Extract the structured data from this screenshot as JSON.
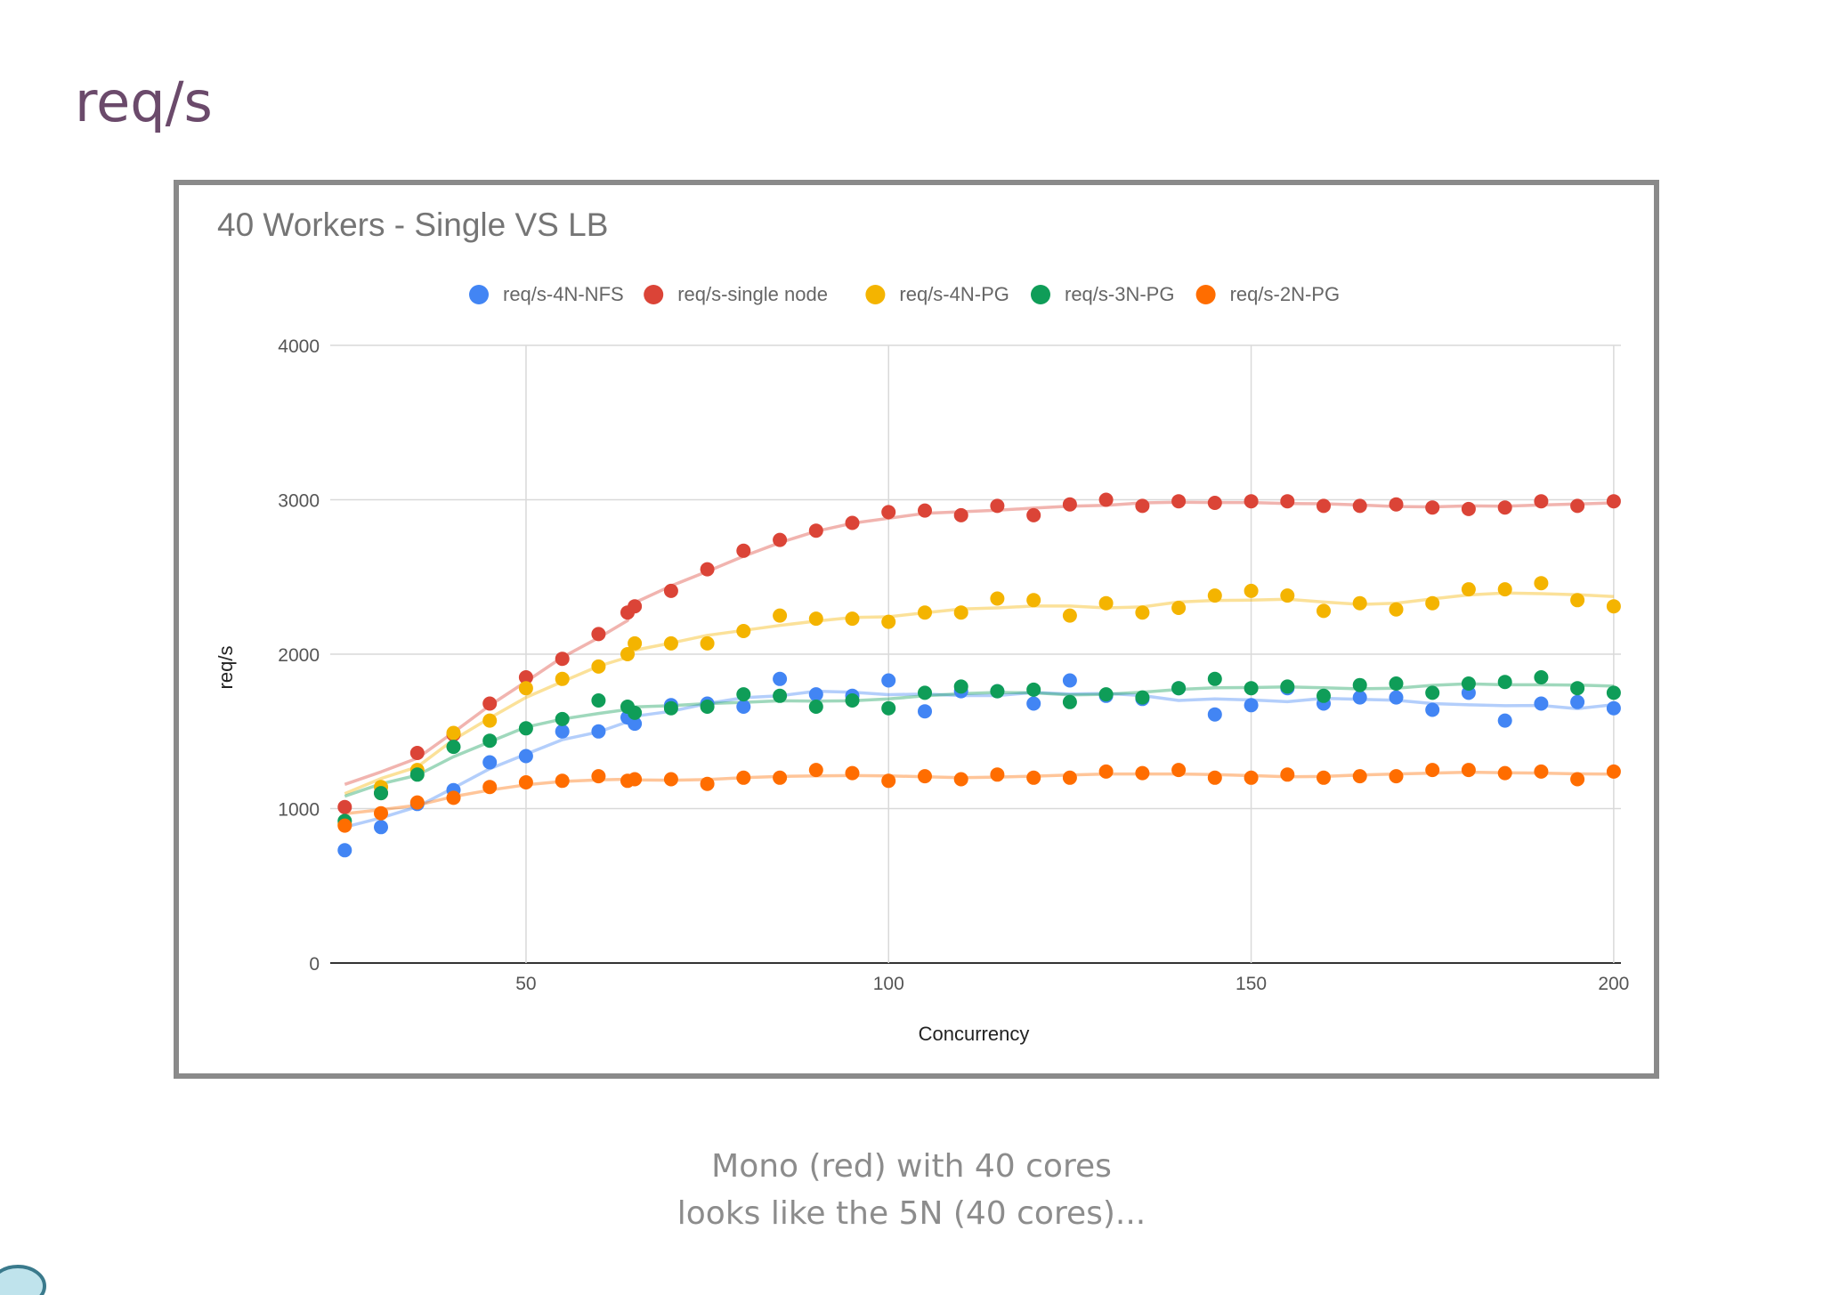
{
  "slide": {
    "title": "req/s",
    "caption_line1": "Mono (red) with 40 cores",
    "caption_line2": "looks like the 5N (40 cores)..."
  },
  "chart_data": {
    "type": "scatter",
    "title": "40 Workers - Single VS LB",
    "xlabel": "Concurrency",
    "ylabel": "req/s",
    "xlim": [
      23,
      201
    ],
    "ylim": [
      0,
      4000
    ],
    "x_ticks": [
      50,
      100,
      150,
      200
    ],
    "y_ticks": [
      0,
      1000,
      2000,
      3000,
      4000
    ],
    "grid": true,
    "legend_position": "top",
    "trendlines": true,
    "x": [
      25,
      30,
      35,
      40,
      45,
      50,
      55,
      60,
      64,
      65,
      70,
      75,
      80,
      85,
      90,
      95,
      100,
      105,
      110,
      115,
      120,
      125,
      130,
      135,
      140,
      145,
      150,
      155,
      160,
      165,
      170,
      175,
      180,
      185,
      190,
      195,
      200
    ],
    "series": [
      {
        "name": "req/s-4N-NFS",
        "color": "#4285f4",
        "values": [
          730,
          880,
          1030,
          1120,
          1300,
          1340,
          1500,
          1500,
          1590,
          1550,
          1670,
          1680,
          1660,
          1840,
          1740,
          1730,
          1830,
          1630,
          1760,
          1760,
          1680,
          1830,
          1730,
          1710,
          1780,
          1610,
          1670,
          1780,
          1680,
          1720,
          1720,
          1640,
          1750,
          1570,
          1680,
          1690,
          1650
        ]
      },
      {
        "name": "req/s-single node",
        "color": "#db4437",
        "values": [
          1010,
          1100,
          1360,
          1480,
          1680,
          1850,
          1970,
          2130,
          2270,
          2310,
          2410,
          2550,
          2670,
          2740,
          2800,
          2850,
          2920,
          2930,
          2900,
          2960,
          2900,
          2970,
          3000,
          2960,
          2990,
          2980,
          2990,
          2990,
          2960,
          2960,
          2970,
          2950,
          2940,
          2950,
          2990,
          2960,
          2990
        ]
      },
      {
        "name": "req/s-4N-PG",
        "color": "#f4b400",
        "values": [
          900,
          1140,
          1250,
          1490,
          1570,
          1780,
          1840,
          1920,
          2000,
          2070,
          2070,
          2070,
          2150,
          2250,
          2230,
          2230,
          2210,
          2270,
          2270,
          2360,
          2350,
          2250,
          2330,
          2270,
          2300,
          2380,
          2410,
          2380,
          2280,
          2330,
          2290,
          2330,
          2420,
          2420,
          2460,
          2350,
          2310
        ]
      },
      {
        "name": "req/s-3N-PG",
        "color": "#0f9d58",
        "values": [
          920,
          1100,
          1220,
          1400,
          1440,
          1520,
          1580,
          1700,
          1660,
          1620,
          1650,
          1660,
          1740,
          1730,
          1660,
          1700,
          1650,
          1750,
          1790,
          1760,
          1770,
          1690,
          1740,
          1720,
          1780,
          1840,
          1780,
          1790,
          1730,
          1800,
          1810,
          1750,
          1810,
          1820,
          1850,
          1780,
          1750
        ]
      },
      {
        "name": "req/s-2N-PG",
        "color": "#ff6d00",
        "values": [
          890,
          970,
          1040,
          1070,
          1140,
          1170,
          1180,
          1210,
          1180,
          1190,
          1190,
          1160,
          1200,
          1200,
          1250,
          1230,
          1180,
          1210,
          1190,
          1220,
          1200,
          1200,
          1240,
          1230,
          1250,
          1200,
          1200,
          1220,
          1200,
          1210,
          1210,
          1250,
          1250,
          1230,
          1240,
          1190,
          1240
        ]
      }
    ]
  }
}
